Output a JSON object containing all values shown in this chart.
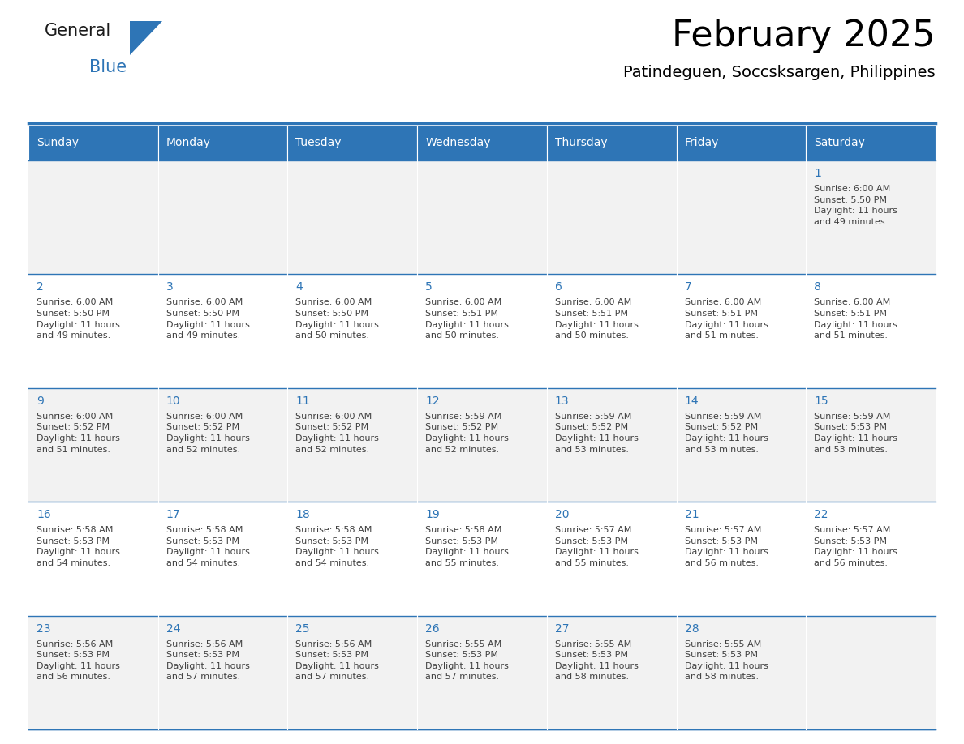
{
  "title": "February 2025",
  "subtitle": "Patindeguen, Soccsksargen, Philippines",
  "header_bg": "#2E75B6",
  "header_text": "#FFFFFF",
  "cell_bg_light": "#F2F2F2",
  "cell_bg_white": "#FFFFFF",
  "day_number_color": "#2E75B6",
  "text_color": "#404040",
  "line_color": "#2E75B6",
  "logo_general_color": "#1A1A1A",
  "logo_blue_color": "#2E75B6",
  "logo_triangle_color": "#2E75B6",
  "days_of_week": [
    "Sunday",
    "Monday",
    "Tuesday",
    "Wednesday",
    "Thursday",
    "Friday",
    "Saturday"
  ],
  "weeks": [
    [
      {
        "day": 0,
        "info": ""
      },
      {
        "day": 0,
        "info": ""
      },
      {
        "day": 0,
        "info": ""
      },
      {
        "day": 0,
        "info": ""
      },
      {
        "day": 0,
        "info": ""
      },
      {
        "day": 0,
        "info": ""
      },
      {
        "day": 1,
        "info": "Sunrise: 6:00 AM\nSunset: 5:50 PM\nDaylight: 11 hours\nand 49 minutes."
      }
    ],
    [
      {
        "day": 2,
        "info": "Sunrise: 6:00 AM\nSunset: 5:50 PM\nDaylight: 11 hours\nand 49 minutes."
      },
      {
        "day": 3,
        "info": "Sunrise: 6:00 AM\nSunset: 5:50 PM\nDaylight: 11 hours\nand 49 minutes."
      },
      {
        "day": 4,
        "info": "Sunrise: 6:00 AM\nSunset: 5:50 PM\nDaylight: 11 hours\nand 50 minutes."
      },
      {
        "day": 5,
        "info": "Sunrise: 6:00 AM\nSunset: 5:51 PM\nDaylight: 11 hours\nand 50 minutes."
      },
      {
        "day": 6,
        "info": "Sunrise: 6:00 AM\nSunset: 5:51 PM\nDaylight: 11 hours\nand 50 minutes."
      },
      {
        "day": 7,
        "info": "Sunrise: 6:00 AM\nSunset: 5:51 PM\nDaylight: 11 hours\nand 51 minutes."
      },
      {
        "day": 8,
        "info": "Sunrise: 6:00 AM\nSunset: 5:51 PM\nDaylight: 11 hours\nand 51 minutes."
      }
    ],
    [
      {
        "day": 9,
        "info": "Sunrise: 6:00 AM\nSunset: 5:52 PM\nDaylight: 11 hours\nand 51 minutes."
      },
      {
        "day": 10,
        "info": "Sunrise: 6:00 AM\nSunset: 5:52 PM\nDaylight: 11 hours\nand 52 minutes."
      },
      {
        "day": 11,
        "info": "Sunrise: 6:00 AM\nSunset: 5:52 PM\nDaylight: 11 hours\nand 52 minutes."
      },
      {
        "day": 12,
        "info": "Sunrise: 5:59 AM\nSunset: 5:52 PM\nDaylight: 11 hours\nand 52 minutes."
      },
      {
        "day": 13,
        "info": "Sunrise: 5:59 AM\nSunset: 5:52 PM\nDaylight: 11 hours\nand 53 minutes."
      },
      {
        "day": 14,
        "info": "Sunrise: 5:59 AM\nSunset: 5:52 PM\nDaylight: 11 hours\nand 53 minutes."
      },
      {
        "day": 15,
        "info": "Sunrise: 5:59 AM\nSunset: 5:53 PM\nDaylight: 11 hours\nand 53 minutes."
      }
    ],
    [
      {
        "day": 16,
        "info": "Sunrise: 5:58 AM\nSunset: 5:53 PM\nDaylight: 11 hours\nand 54 minutes."
      },
      {
        "day": 17,
        "info": "Sunrise: 5:58 AM\nSunset: 5:53 PM\nDaylight: 11 hours\nand 54 minutes."
      },
      {
        "day": 18,
        "info": "Sunrise: 5:58 AM\nSunset: 5:53 PM\nDaylight: 11 hours\nand 54 minutes."
      },
      {
        "day": 19,
        "info": "Sunrise: 5:58 AM\nSunset: 5:53 PM\nDaylight: 11 hours\nand 55 minutes."
      },
      {
        "day": 20,
        "info": "Sunrise: 5:57 AM\nSunset: 5:53 PM\nDaylight: 11 hours\nand 55 minutes."
      },
      {
        "day": 21,
        "info": "Sunrise: 5:57 AM\nSunset: 5:53 PM\nDaylight: 11 hours\nand 56 minutes."
      },
      {
        "day": 22,
        "info": "Sunrise: 5:57 AM\nSunset: 5:53 PM\nDaylight: 11 hours\nand 56 minutes."
      }
    ],
    [
      {
        "day": 23,
        "info": "Sunrise: 5:56 AM\nSunset: 5:53 PM\nDaylight: 11 hours\nand 56 minutes."
      },
      {
        "day": 24,
        "info": "Sunrise: 5:56 AM\nSunset: 5:53 PM\nDaylight: 11 hours\nand 57 minutes."
      },
      {
        "day": 25,
        "info": "Sunrise: 5:56 AM\nSunset: 5:53 PM\nDaylight: 11 hours\nand 57 minutes."
      },
      {
        "day": 26,
        "info": "Sunrise: 5:55 AM\nSunset: 5:53 PM\nDaylight: 11 hours\nand 57 minutes."
      },
      {
        "day": 27,
        "info": "Sunrise: 5:55 AM\nSunset: 5:53 PM\nDaylight: 11 hours\nand 58 minutes."
      },
      {
        "day": 28,
        "info": "Sunrise: 5:55 AM\nSunset: 5:53 PM\nDaylight: 11 hours\nand 58 minutes."
      },
      {
        "day": 0,
        "info": ""
      }
    ]
  ]
}
